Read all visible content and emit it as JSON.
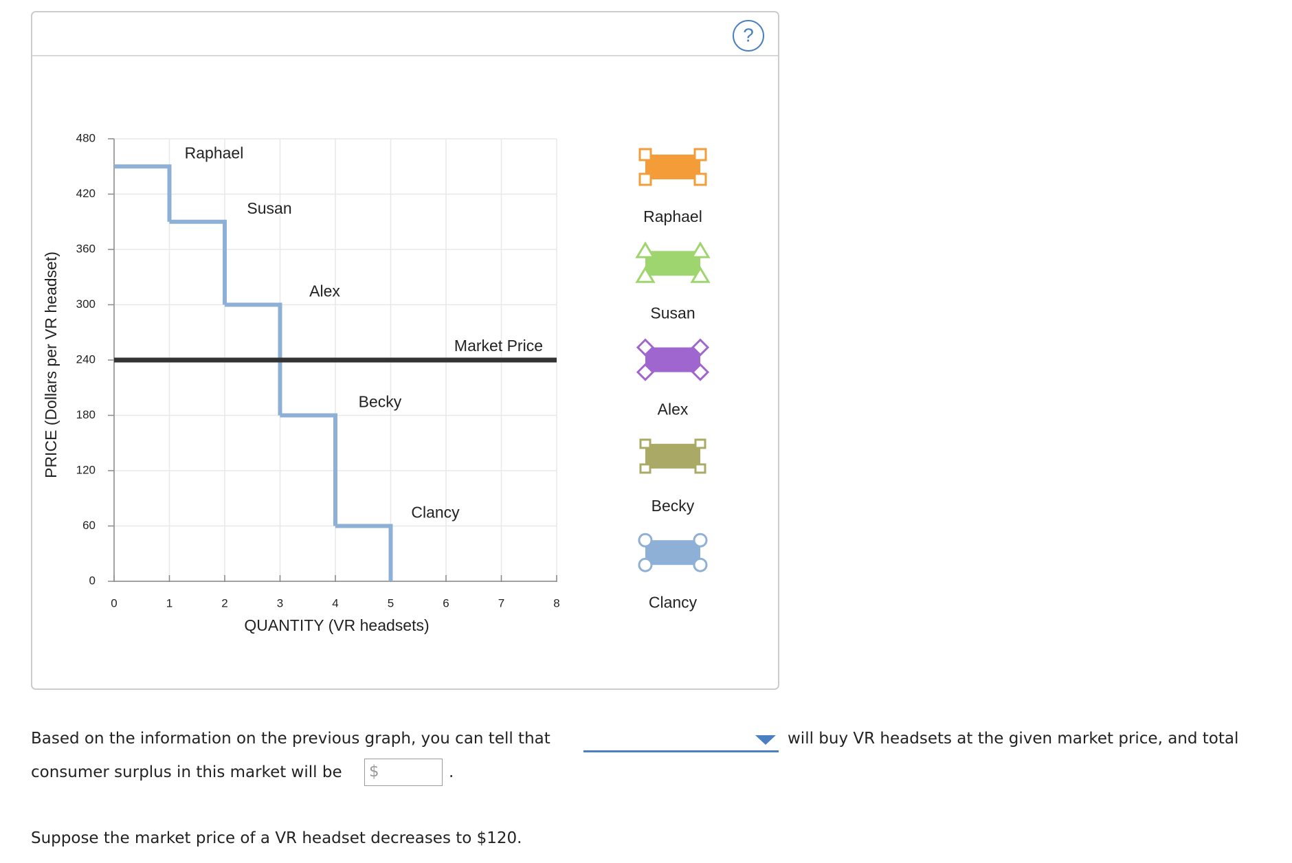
{
  "chart_data": {
    "type": "step",
    "x_label": "QUANTITY (VR headsets)",
    "y_label": "PRICE (Dollars per VR headset)",
    "categories": [
      "Raphael",
      "Susan",
      "Alex",
      "Becky",
      "Clancy"
    ],
    "values": [
      450,
      390,
      300,
      180,
      60
    ],
    "color": "#8fb0d6",
    "legend_colors": [
      "#f39c38",
      "#9fd56f",
      "#a066d0",
      "#aaaa66",
      "#8fb0d6"
    ],
    "market_price": {
      "label": "Market Price",
      "value": 240,
      "color": "#333333"
    },
    "xlim": [
      0,
      8
    ],
    "xticks": [
      0,
      1,
      2,
      3,
      4,
      5,
      6,
      7,
      8
    ],
    "ylim": [
      0,
      480
    ],
    "yticks": [
      0,
      60,
      120,
      180,
      240,
      300,
      360,
      420,
      480
    ],
    "grid": true
  },
  "question": {
    "help": "?",
    "part1": "Based on the information on the previous graph, you can tell that",
    "part2": "will buy VR headsets at the given market price, and total",
    "part3": "consumer surplus in this market will be",
    "currency": "$",
    "end": ".",
    "followup": "Suppose the market price of a VR headset decreases to $120."
  }
}
